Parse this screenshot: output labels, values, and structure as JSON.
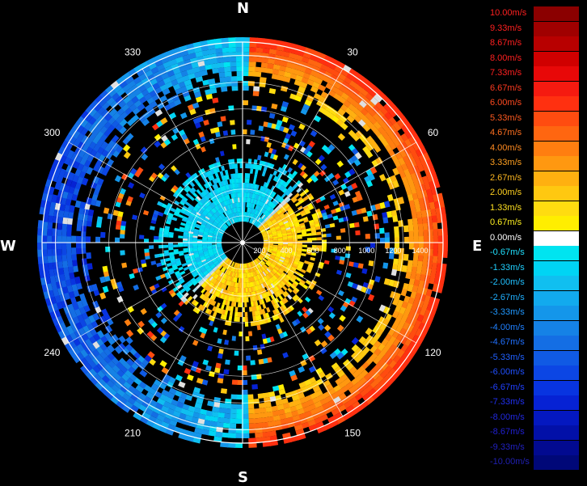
{
  "chart_data": {
    "type": "polar-heatmap",
    "compass": {
      "north": "N",
      "east": "E",
      "south": "S",
      "west": "W"
    },
    "azimuth_ticks": [
      "30",
      "60",
      "120",
      "150",
      "210",
      "240",
      "300",
      "330"
    ],
    "range_ticks": [
      "200",
      "400",
      "600",
      "800",
      "1000",
      "1200",
      "1400"
    ],
    "range_max": 1500,
    "grid": true,
    "legend_position": "right",
    "colorbar": [
      {
        "label": "10.00m/s",
        "color": "#8b0000",
        "label_color": "#ff2020"
      },
      {
        "label": "9.33m/s",
        "color": "#a00000",
        "label_color": "#ff2020"
      },
      {
        "label": "8.67m/s",
        "color": "#b80000",
        "label_color": "#ff2020"
      },
      {
        "label": "8.00m/s",
        "color": "#d00000",
        "label_color": "#ff2020"
      },
      {
        "label": "7.33m/s",
        "color": "#e80808",
        "label_color": "#ff2020"
      },
      {
        "label": "6.67m/s",
        "color": "#f51a10",
        "label_color": "#ff3a20"
      },
      {
        "label": "6.00m/s",
        "color": "#ff3010",
        "label_color": "#ff4a20"
      },
      {
        "label": "5.33m/s",
        "color": "#ff4c10",
        "label_color": "#ff5a20"
      },
      {
        "label": "4.67m/s",
        "color": "#ff6610",
        "label_color": "#ff7020"
      },
      {
        "label": "4.00m/s",
        "color": "#ff7e10",
        "label_color": "#ff8a20"
      },
      {
        "label": "3.33m/s",
        "color": "#ff9810",
        "label_color": "#ffa020"
      },
      {
        "label": "2.67m/s",
        "color": "#ffb010",
        "label_color": "#ffb820"
      },
      {
        "label": "2.00m/s",
        "color": "#ffc810",
        "label_color": "#ffd020"
      },
      {
        "label": "1.33m/s",
        "color": "#ffdc10",
        "label_color": "#ffe020"
      },
      {
        "label": "0.67m/s",
        "color": "#ffee00",
        "label_color": "#fff020"
      },
      {
        "label": "0.00m/s",
        "color": "#ffffff",
        "label_color": "#ffffff"
      },
      {
        "label": "-0.67m/s",
        "color": "#00e4f0",
        "label_color": "#20e0ff"
      },
      {
        "label": "-1.33m/s",
        "color": "#00d4f4",
        "label_color": "#20d0ff"
      },
      {
        "label": "-2.00m/s",
        "color": "#10bff0",
        "label_color": "#20c0ff"
      },
      {
        "label": "-2.67m/s",
        "color": "#12aaee",
        "label_color": "#20b0ff"
      },
      {
        "label": "-3.33m/s",
        "color": "#1496ea",
        "label_color": "#2098ff"
      },
      {
        "label": "-4.00m/s",
        "color": "#1582e6",
        "label_color": "#2080ff"
      },
      {
        "label": "-4.67m/s",
        "color": "#146ee4",
        "label_color": "#2070ff"
      },
      {
        "label": "-5.33m/s",
        "color": "#105ae4",
        "label_color": "#2060ff"
      },
      {
        "label": "-6.00m/s",
        "color": "#0c46e4",
        "label_color": "#2050ff"
      },
      {
        "label": "-6.67m/s",
        "color": "#0834e0",
        "label_color": "#2040ff"
      },
      {
        "label": "-7.33m/s",
        "color": "#0622d4",
        "label_color": "#2030f0"
      },
      {
        "label": "-8.00m/s",
        "color": "#0418c0",
        "label_color": "#2028e0"
      },
      {
        "label": "-8.67m/s",
        "color": "#0210a8",
        "label_color": "#2020d0"
      },
      {
        "label": "-9.33m/s",
        "color": "#020a90",
        "label_color": "#2020c0"
      },
      {
        "label": "-10.00m/s",
        "color": "#000878",
        "label_color": "#2020b0"
      }
    ],
    "colors": {
      "background": "#000000",
      "grid": "#ffffff",
      "approaching": "#1ea0ea",
      "receding": "#f0c000"
    }
  }
}
